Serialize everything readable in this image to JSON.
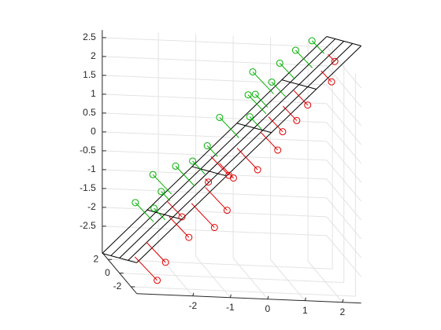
{
  "chart_data": {
    "type": "scatter3d",
    "x": [
      -3.0,
      -2.7,
      -2.2,
      -2.5,
      -2.8,
      -2.0,
      -1.8,
      -1.6,
      -1.5,
      -1.2,
      -1.0,
      -0.9,
      -0.7,
      -0.5,
      -0.3,
      -0.2,
      0.0,
      0.1,
      0.3,
      0.5,
      0.6,
      0.8,
      1.0,
      1.1,
      1.3,
      1.5,
      1.8,
      2.0,
      2.3,
      -1.3,
      -2.3,
      0.4
    ],
    "y": [
      0.5,
      -0.8,
      1.2,
      -1.5,
      -2.0,
      0.0,
      -1.0,
      1.5,
      0.3,
      -0.5,
      1.0,
      -1.8,
      0.8,
      -0.3,
      1.8,
      -1.2,
      0.4,
      -0.6,
      1.1,
      -1.5,
      0.2,
      -0.4,
      1.4,
      -0.9,
      0.6,
      -0.2,
      1.0,
      -1.1,
      0.3,
      -2.2,
      2.0,
      2.2
    ],
    "z": [
      -1.4,
      -1.3,
      -1.2,
      -2.6,
      -3.0,
      -0.3,
      -2.0,
      -1.9,
      -0.2,
      -0.6,
      0.1,
      -1.1,
      0.9,
      -0.5,
      -0.8,
      1.3,
      1.6,
      -0.2,
      1.5,
      0.5,
      2.0,
      0.8,
      2.3,
      1.2,
      2.8,
      1.5,
      3.0,
      2.3,
      2.6,
      -1.5,
      -0.9,
      1.9
    ],
    "surface": {
      "coefficients": [
        0.7,
        1,
        -0.14
      ],
      "color": "#000000"
    },
    "marker_colors": [
      "#00b000",
      "#e00000"
    ],
    "xlim": [
      -3.5,
      2.5
    ],
    "ylim": [
      -3,
      3
    ],
    "zlim": [
      -3.2,
      2.7
    ],
    "xticks": [
      -2,
      -1,
      0,
      1,
      2
    ],
    "yticks": [
      -2,
      0,
      2
    ],
    "zticks": [
      -2.5,
      -2,
      -1.5,
      -1,
      -0.5,
      0,
      0.5,
      1,
      1.5,
      2,
      2.5
    ],
    "grid": true
  }
}
